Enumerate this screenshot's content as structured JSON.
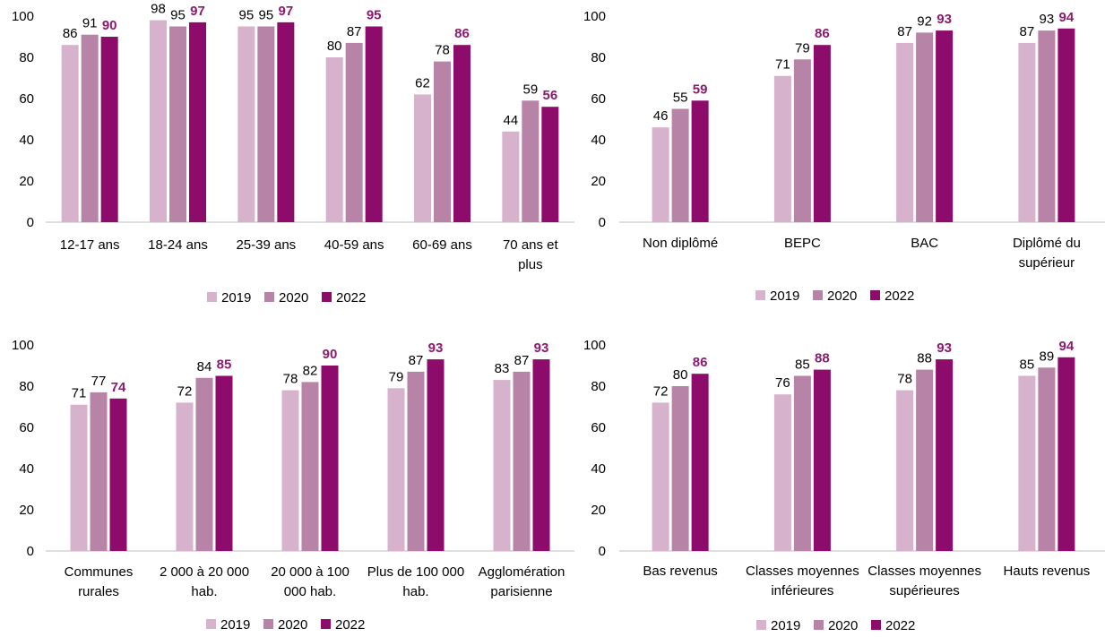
{
  "colors": {
    "y2019": "#d6b2cc",
    "y2020": "#b784a7",
    "y2022": "#8c0b6b",
    "axis": "#bfbfbf",
    "text": "#000000",
    "label_2022": "#8c1a6e"
  },
  "legend": [
    "2019",
    "2020",
    "2022"
  ],
  "chart_data": [
    {
      "type": "bar",
      "title": "",
      "ylim": [
        0,
        100
      ],
      "yticks": [
        "0",
        "20",
        "40",
        "60",
        "80",
        "100"
      ],
      "categories": [
        [
          "12-17 ans"
        ],
        [
          "18-24 ans"
        ],
        [
          "25-39 ans"
        ],
        [
          "40-59 ans"
        ],
        [
          "60-69 ans"
        ],
        [
          "70 ans et",
          "plus"
        ]
      ],
      "series": [
        {
          "name": "2019",
          "values": [
            86,
            98,
            95,
            80,
            62,
            44
          ]
        },
        {
          "name": "2020",
          "values": [
            91,
            95,
            95,
            87,
            78,
            59
          ]
        },
        {
          "name": "2022",
          "values": [
            90,
            97,
            97,
            95,
            86,
            56
          ]
        }
      ],
      "legend_position": "bottom",
      "grid": false
    },
    {
      "type": "bar",
      "title": "",
      "ylim": [
        0,
        100
      ],
      "yticks": [
        "0",
        "20",
        "40",
        "60",
        "80",
        "100"
      ],
      "categories": [
        [
          "Non diplômé"
        ],
        [
          "BEPC"
        ],
        [
          "BAC"
        ],
        [
          "Diplômé du",
          "supérieur"
        ]
      ],
      "series": [
        {
          "name": "2019",
          "values": [
            46,
            71,
            87,
            87
          ]
        },
        {
          "name": "2020",
          "values": [
            55,
            79,
            92,
            93
          ]
        },
        {
          "name": "2022",
          "values": [
            59,
            86,
            93,
            94
          ]
        }
      ],
      "legend_position": "bottom",
      "grid": false
    },
    {
      "type": "bar",
      "title": "",
      "ylim": [
        0,
        100
      ],
      "yticks": [
        "0",
        "20",
        "40",
        "60",
        "80",
        "100"
      ],
      "categories": [
        [
          "Communes",
          "rurales"
        ],
        [
          "2 000 à 20 000",
          "hab."
        ],
        [
          "20 000 à 100",
          "000 hab."
        ],
        [
          "Plus de 100 000",
          "hab."
        ],
        [
          "Agglomération",
          "parisienne"
        ]
      ],
      "series": [
        {
          "name": "2019",
          "values": [
            71,
            72,
            78,
            79,
            83
          ]
        },
        {
          "name": "2020",
          "values": [
            77,
            84,
            82,
            87,
            87
          ]
        },
        {
          "name": "2022",
          "values": [
            74,
            85,
            90,
            93,
            93
          ]
        }
      ],
      "legend_position": "bottom",
      "grid": false
    },
    {
      "type": "bar",
      "title": "",
      "ylim": [
        0,
        100
      ],
      "yticks": [
        "0",
        "20",
        "40",
        "60",
        "80",
        "100"
      ],
      "categories": [
        [
          "Bas revenus"
        ],
        [
          "Classes moyennes",
          "inférieures"
        ],
        [
          "Classes moyennes",
          "supérieures"
        ],
        [
          "Hauts revenus"
        ]
      ],
      "series": [
        {
          "name": "2019",
          "values": [
            72,
            76,
            78,
            85
          ]
        },
        {
          "name": "2020",
          "values": [
            80,
            85,
            88,
            89
          ]
        },
        {
          "name": "2022",
          "values": [
            86,
            88,
            93,
            94
          ]
        }
      ],
      "legend_position": "bottom",
      "grid": false
    }
  ]
}
